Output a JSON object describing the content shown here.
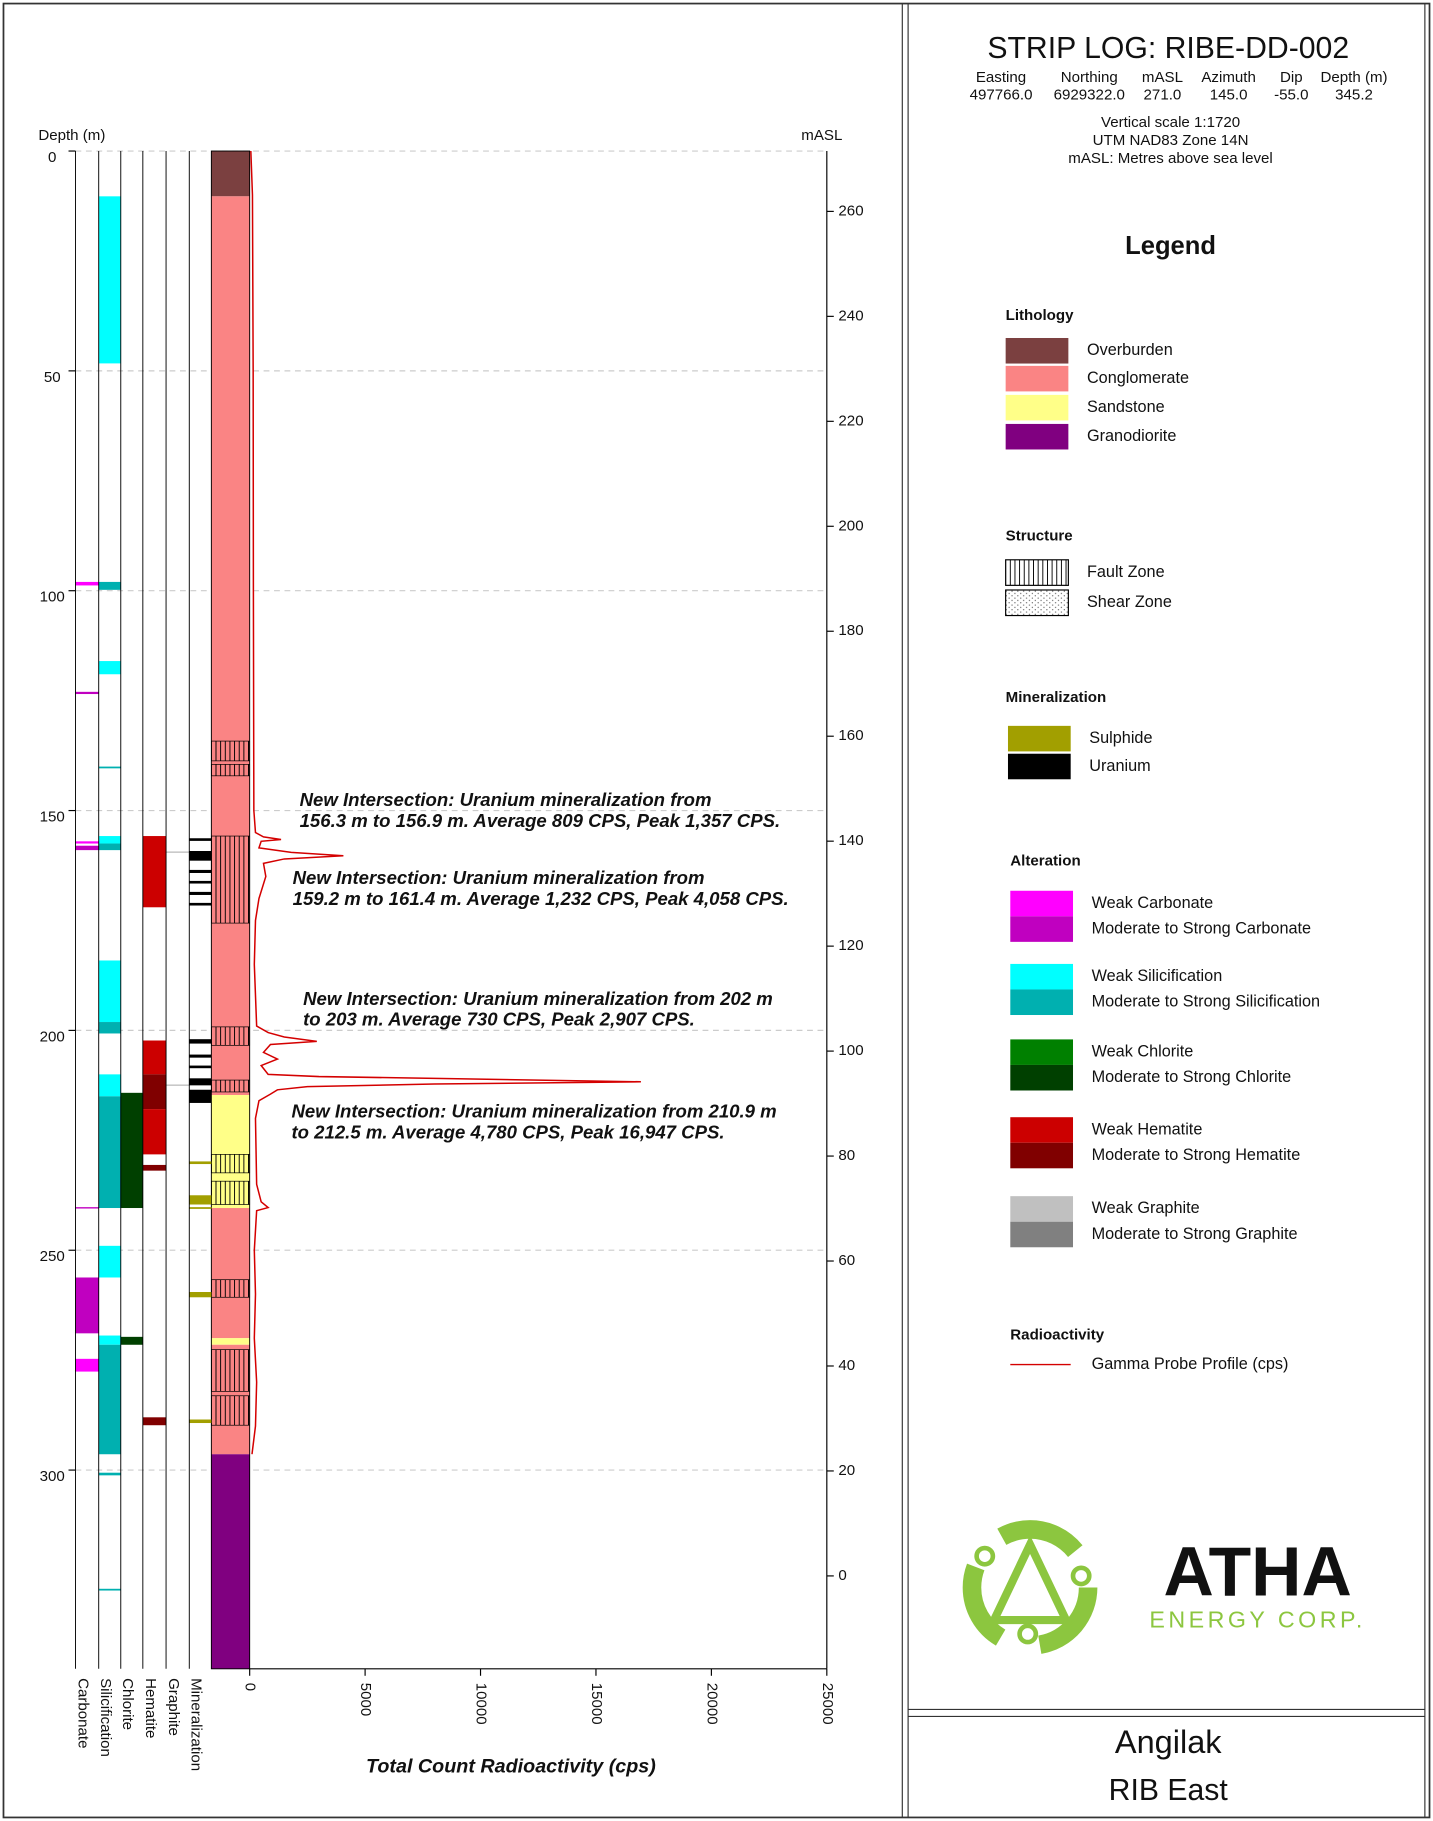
{
  "title": "STRIP LOG: RIBE-DD-002",
  "collar": {
    "headers": [
      "Easting",
      "Northing",
      "mASL",
      "Azimuth",
      "Dip",
      "Depth (m)"
    ],
    "values": [
      "497766.0",
      "6929322.0",
      "271.0",
      "145.0",
      "-55.0",
      "345.2"
    ]
  },
  "notes": [
    "Vertical scale 1:1720",
    "UTM NAD83 Zone 14N",
    "mASL: Metres above sea level"
  ],
  "chart_data": {
    "type": "strip-log",
    "ylabel": "Depth (m)",
    "ylim": [
      0,
      345.2
    ],
    "yticks": [
      0,
      50,
      100,
      150,
      200,
      250,
      300
    ],
    "grid": true,
    "y2label": "mASL",
    "y2lim": [
      271.5,
      -17.7
    ],
    "y2ticks": [
      260,
      240,
      220,
      200,
      180,
      160,
      140,
      120,
      100,
      80,
      60,
      40,
      20,
      0
    ],
    "xlabel": "Total Count Radioactivity (cps)",
    "xlim": [
      0,
      25000
    ],
    "xticks": [
      0,
      5000,
      10000,
      15000,
      20000,
      25000
    ],
    "lithology": [
      {
        "from": 0,
        "to": 10.3,
        "class": "Overburden"
      },
      {
        "from": 10.3,
        "to": 214.7,
        "class": "Conglomerate"
      },
      {
        "from": 214.7,
        "to": 240.4,
        "class": "Sandstone"
      },
      {
        "from": 240.4,
        "to": 270,
        "class": "Conglomerate"
      },
      {
        "from": 270,
        "to": 271.5,
        "class": "Sandstone"
      },
      {
        "from": 271.5,
        "to": 296.4,
        "class": "Conglomerate"
      },
      {
        "from": 296.4,
        "to": 345.2,
        "class": "Granodiorite"
      }
    ],
    "structure": [
      {
        "from": 134.2,
        "to": 138.7,
        "class": "Fault Zone"
      },
      {
        "from": 139.5,
        "to": 142.1,
        "class": "Fault Zone"
      },
      {
        "from": 155.8,
        "to": 175.6,
        "class": "Fault Zone"
      },
      {
        "from": 199.2,
        "to": 203.4,
        "class": "Fault Zone"
      },
      {
        "from": 211.3,
        "to": 214,
        "class": "Fault Zone"
      },
      {
        "from": 228.2,
        "to": 232.4,
        "class": "Fault Zone"
      },
      {
        "from": 234.3,
        "to": 239.6,
        "class": "Fault Zone"
      },
      {
        "from": 256.7,
        "to": 260.7,
        "class": "Fault Zone"
      },
      {
        "from": 272.6,
        "to": 282.1,
        "class": "Fault Zone"
      },
      {
        "from": 283.1,
        "to": 289.8,
        "class": "Fault Zone"
      }
    ],
    "tracks": [
      {
        "name": "Carbonate",
        "intervals": [
          {
            "from": 98,
            "to": 98.8,
            "class": "Weak Carbonate"
          },
          {
            "from": 123,
            "to": 123.5,
            "class": "Moderate to Strong Carbonate"
          },
          {
            "from": 157,
            "to": 157.5,
            "class": "Weak Carbonate"
          },
          {
            "from": 158,
            "to": 159,
            "class": "Moderate to Strong Carbonate"
          },
          {
            "from": 240.2,
            "to": 240.5,
            "class": "Moderate to Strong Carbonate"
          },
          {
            "from": 256.2,
            "to": 268.9,
            "class": "Moderate to Strong Carbonate"
          },
          {
            "from": 274.7,
            "to": 277.6,
            "class": "Weak Carbonate"
          }
        ]
      },
      {
        "name": "Silicification",
        "intervals": [
          {
            "from": 10.3,
            "to": 48.3,
            "class": "Weak Silicification"
          },
          {
            "from": 98,
            "to": 99.8,
            "class": "Moderate to Strong Silicification"
          },
          {
            "from": 116,
            "to": 119,
            "class": "Weak Silicification"
          },
          {
            "from": 140,
            "to": 140.4,
            "class": "Moderate to Strong Silicification"
          },
          {
            "from": 155.8,
            "to": 157.5,
            "class": "Weak Silicification"
          },
          {
            "from": 157.5,
            "to": 159,
            "class": "Moderate to Strong Silicification"
          },
          {
            "from": 184.1,
            "to": 198.1,
            "class": "Weak Silicification"
          },
          {
            "from": 198.1,
            "to": 200.7,
            "class": "Moderate to Strong Silicification"
          },
          {
            "from": 210,
            "to": 215,
            "class": "Weak Silicification"
          },
          {
            "from": 215,
            "to": 240.4,
            "class": "Moderate to Strong Silicification"
          },
          {
            "from": 249,
            "to": 256.2,
            "class": "Weak Silicification"
          },
          {
            "from": 269.4,
            "to": 271.5,
            "class": "Weak Silicification"
          },
          {
            "from": 271.5,
            "to": 296.4,
            "class": "Moderate to Strong Silicification"
          },
          {
            "from": 300.6,
            "to": 301.2,
            "class": "Moderate to Strong Silicification"
          },
          {
            "from": 327,
            "to": 327.4,
            "class": "Moderate to Strong Silicification"
          }
        ]
      },
      {
        "name": "Chlorite",
        "intervals": [
          {
            "from": 214.2,
            "to": 240.4,
            "class": "Moderate to Strong Chlorite"
          },
          {
            "from": 269.7,
            "to": 271.5,
            "class": "Moderate to Strong Chlorite"
          }
        ]
      },
      {
        "name": "Hematite",
        "intervals": [
          {
            "from": 155.8,
            "to": 172,
            "class": "Weak Hematite"
          },
          {
            "from": 202.3,
            "to": 210,
            "class": "Weak Hematite"
          },
          {
            "from": 210,
            "to": 217.9,
            "class": "Moderate to Strong Hematite"
          },
          {
            "from": 217.9,
            "to": 228.2,
            "class": "Weak Hematite"
          },
          {
            "from": 230.6,
            "to": 231.9,
            "class": "Moderate to Strong Hematite"
          },
          {
            "from": 288,
            "to": 289.8,
            "class": "Moderate to Strong Hematite"
          }
        ]
      },
      {
        "name": "Graphite",
        "intervals": [
          {
            "from": 159.3,
            "to": 159.6,
            "class": "Weak Graphite"
          },
          {
            "from": 212.3,
            "to": 212.6,
            "class": "Weak Graphite"
          }
        ]
      },
      {
        "name": "Mineralization",
        "intervals": [
          {
            "from": 156.3,
            "to": 156.9,
            "class": "Uranium"
          },
          {
            "from": 159.2,
            "to": 161.4,
            "class": "Uranium"
          },
          {
            "from": 163.5,
            "to": 164.2,
            "class": "Uranium"
          },
          {
            "from": 166,
            "to": 166.6,
            "class": "Uranium"
          },
          {
            "from": 168.5,
            "to": 169.2,
            "class": "Uranium"
          },
          {
            "from": 171,
            "to": 171.6,
            "class": "Uranium"
          },
          {
            "from": 202,
            "to": 203,
            "class": "Uranium"
          },
          {
            "from": 205.5,
            "to": 206.2,
            "class": "Uranium"
          },
          {
            "from": 208,
            "to": 208.6,
            "class": "Uranium"
          },
          {
            "from": 210.9,
            "to": 212.5,
            "class": "Uranium"
          },
          {
            "from": 213.5,
            "to": 216.5,
            "class": "Uranium"
          },
          {
            "from": 229.8,
            "to": 230.4,
            "class": "Sulphide"
          },
          {
            "from": 237.5,
            "to": 239.6,
            "class": "Sulphide"
          },
          {
            "from": 240.2,
            "to": 240.6,
            "class": "Sulphide"
          },
          {
            "from": 259.5,
            "to": 260.7,
            "class": "Sulphide"
          },
          {
            "from": 288.5,
            "to": 289.3,
            "class": "Sulphide"
          }
        ]
      }
    ],
    "gamma": {
      "color": "#d40000",
      "depth": [
        0,
        10,
        50,
        100,
        150,
        155,
        156.0,
        156.6,
        157.0,
        158.5,
        159.5,
        160.3,
        161.0,
        162,
        165,
        170,
        175,
        185,
        199,
        200.5,
        201.5,
        202.5,
        203.2,
        205,
        206.5,
        208,
        210,
        210.5,
        211.0,
        211.7,
        212.2,
        212.8,
        213.5,
        214.5,
        216,
        220,
        235,
        239,
        240.3,
        241,
        250,
        260,
        270,
        280,
        290,
        296.4
      ],
      "values": [
        50,
        120,
        150,
        160,
        180,
        250,
        600,
        1357,
        500,
        400,
        1800,
        4058,
        1500,
        600,
        700,
        400,
        250,
        200,
        300,
        800,
        1500,
        2907,
        900,
        600,
        1200,
        500,
        800,
        3000,
        9000,
        16947,
        8000,
        2500,
        1200,
        900,
        400,
        250,
        300,
        500,
        800,
        300,
        200,
        250,
        200,
        300,
        250,
        100
      ]
    },
    "annotations": [
      {
        "lines": [
          "New Intersection: Uranium mineralization from",
          "156.3 m to 156.9 m. Average 809 CPS, Peak 1,357 CPS."
        ]
      },
      {
        "lines": [
          "New Intersection: Uranium mineralization from",
          "159.2 m to 161.4 m. Average 1,232 CPS, Peak 4,058 CPS."
        ]
      },
      {
        "lines": [
          "New Intersection: Uranium mineralization from 202 m",
          "to 203 m. Average 730 CPS, Peak 2,907 CPS."
        ]
      },
      {
        "lines": [
          "New Intersection: Uranium mineralization from 210.9 m",
          "to 212.5 m. Average 4,780 CPS, Peak 16,947 CPS."
        ]
      }
    ]
  },
  "legend": {
    "title": "Legend",
    "sections": [
      {
        "title": "Lithology",
        "items": [
          {
            "label": "Overburden",
            "color": "#7b4040"
          },
          {
            "label": "Conglomerate",
            "color": "#fa8484"
          },
          {
            "label": "Sandstone",
            "color": "#ffff88"
          },
          {
            "label": "Granodiorite",
            "color": "#800080"
          }
        ]
      },
      {
        "title": "Structure",
        "items": [
          {
            "label": "Fault Zone",
            "pattern": "fault"
          },
          {
            "label": "Shear Zone",
            "pattern": "shear"
          }
        ]
      },
      {
        "title": "Mineralization",
        "items": [
          {
            "label": "Sulphide",
            "color": "#a29f00"
          },
          {
            "label": "Uranium",
            "color": "#000000"
          }
        ]
      },
      {
        "title": "Alteration",
        "items": [
          {
            "label": "Weak Carbonate",
            "color": "#ff00ff"
          },
          {
            "label": "Moderate to Strong Carbonate",
            "color": "#c000c0"
          },
          {
            "label": "Weak Silicification",
            "color": "#00ffff"
          },
          {
            "label": "Moderate to Strong Silicification",
            "color": "#00b0b0"
          },
          {
            "label": "Weak Chlorite",
            "color": "#008000"
          },
          {
            "label": "Moderate to Strong Chlorite",
            "color": "#004000"
          },
          {
            "label": "Weak Hematite",
            "color": "#cc0000"
          },
          {
            "label": "Moderate to Strong Hematite",
            "color": "#800000"
          },
          {
            "label": "Weak Graphite",
            "color": "#c0c0c0"
          },
          {
            "label": "Moderate to Strong Graphite",
            "color": "#808080"
          }
        ]
      },
      {
        "title": "Radioactivity",
        "items": [
          {
            "label": "Gamma Probe Profile (cps)",
            "color": "#d40000",
            "line": true
          }
        ]
      }
    ]
  },
  "logo": {
    "name": "ATHA",
    "tagline": "ENERGY CORP."
  },
  "footer": {
    "project": "Angilak",
    "area": "RIB East"
  }
}
